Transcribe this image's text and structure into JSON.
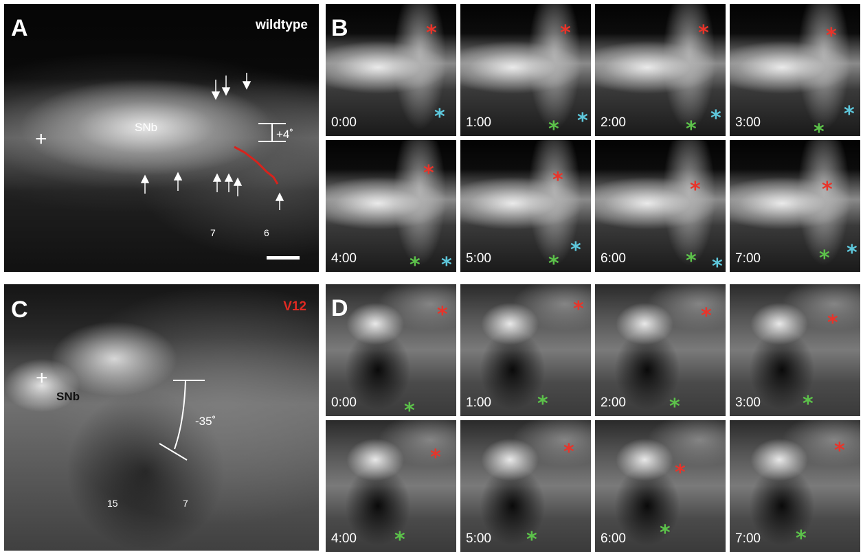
{
  "colors": {
    "red_star": "#e8342a",
    "green_star": "#5cc24a",
    "blue_star": "#5ec8dc",
    "v12_label": "#e02a22",
    "trace": "#d8231c"
  },
  "panel_a": {
    "letter": "A",
    "condition": "wildtype",
    "nerve": "SNb",
    "plus": "+",
    "angle": "+4˚",
    "muscle_7": "7",
    "muscle_6": "6"
  },
  "panel_b": {
    "letter": "B",
    "frames": [
      {
        "time": "0:00",
        "stars": [
          "red",
          "blue"
        ]
      },
      {
        "time": "1:00",
        "stars": [
          "red",
          "green",
          "blue"
        ]
      },
      {
        "time": "2:00",
        "stars": [
          "red",
          "green",
          "blue"
        ]
      },
      {
        "time": "3:00",
        "stars": [
          "red",
          "green",
          "blue"
        ]
      },
      {
        "time": "4:00",
        "stars": [
          "red",
          "green",
          "blue"
        ]
      },
      {
        "time": "5:00",
        "stars": [
          "red",
          "green",
          "blue"
        ]
      },
      {
        "time": "6:00",
        "stars": [
          "red",
          "green",
          "blue"
        ]
      },
      {
        "time": "7:00",
        "stars": [
          "red",
          "green",
          "blue"
        ]
      }
    ]
  },
  "panel_c": {
    "letter": "C",
    "condition": "V12",
    "nerve": "SNb",
    "plus": "+",
    "angle": "-35˚",
    "muscle_15": "15",
    "muscle_7": "7"
  },
  "panel_d": {
    "letter": "D",
    "frames": [
      {
        "time": "0:00",
        "stars": [
          "red",
          "green"
        ]
      },
      {
        "time": "1:00",
        "stars": [
          "red",
          "green"
        ]
      },
      {
        "time": "2:00",
        "stars": [
          "red",
          "green"
        ]
      },
      {
        "time": "3:00",
        "stars": [
          "red",
          "green"
        ]
      },
      {
        "time": "4:00",
        "stars": [
          "red",
          "green"
        ]
      },
      {
        "time": "5:00",
        "stars": [
          "red",
          "green"
        ]
      },
      {
        "time": "6:00",
        "stars": [
          "red",
          "green"
        ]
      },
      {
        "time": "7:00",
        "stars": [
          "red",
          "green"
        ]
      }
    ]
  },
  "star_glyph": "*"
}
